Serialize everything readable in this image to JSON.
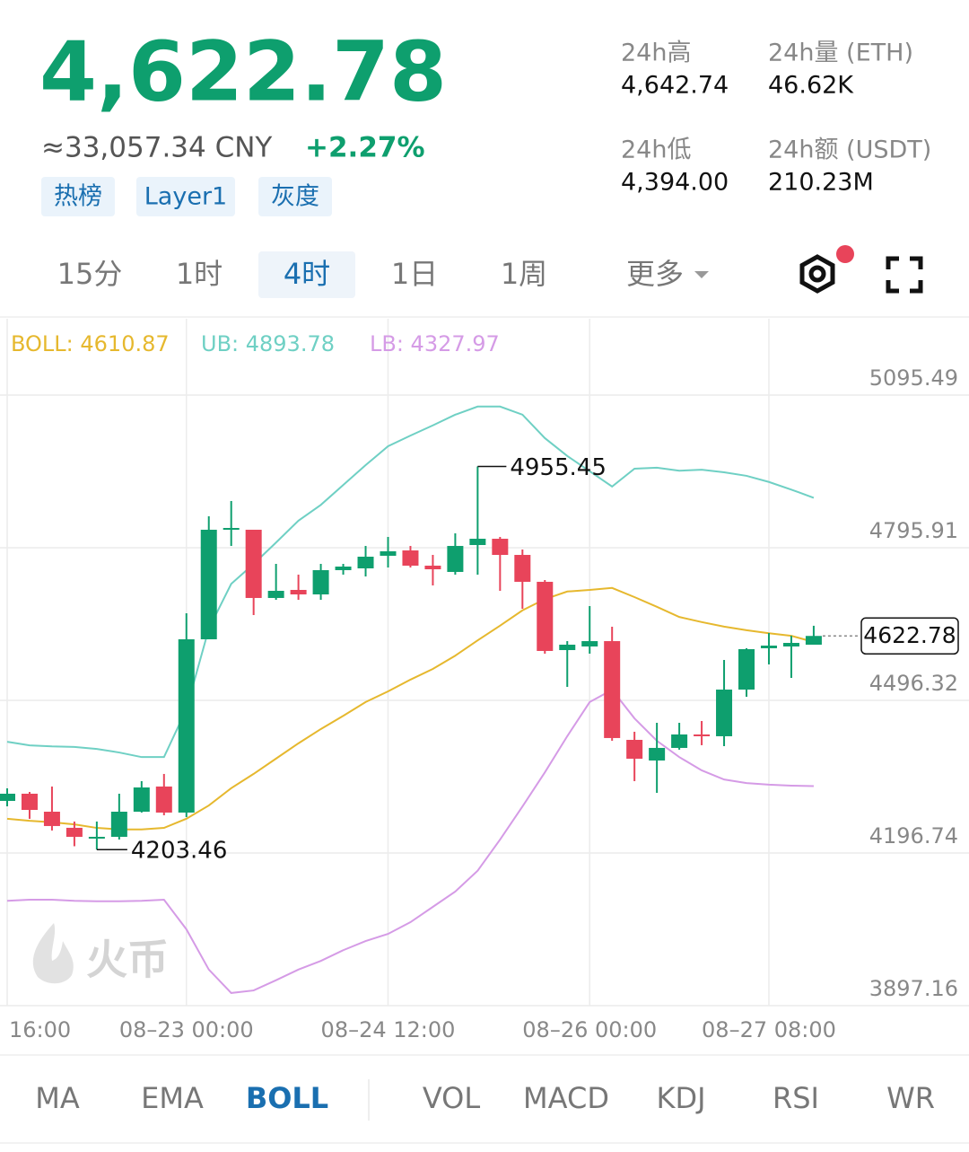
{
  "header": {
    "price": "4,622.78",
    "cny": "≈33,057.34 CNY",
    "change": "+2.27%",
    "tags": [
      "热榜",
      "Layer1",
      "灰度"
    ],
    "stats": [
      {
        "label": "24h高",
        "value": "4,642.74"
      },
      {
        "label": "24h量 (ETH)",
        "value": "46.62K"
      },
      {
        "label": "24h低",
        "value": "4,394.00"
      },
      {
        "label": "24h额 (USDT)",
        "value": "210.23M"
      }
    ]
  },
  "intervals": {
    "items": [
      "15分",
      "1时",
      "4时",
      "1日",
      "1周",
      "更多"
    ],
    "selected": 2
  },
  "indicators": {
    "items": [
      "MA",
      "EMA",
      "BOLL",
      "VOL",
      "MACD",
      "KDJ",
      "RSI",
      "WR"
    ],
    "selected": 2
  },
  "watermark": "火币",
  "chart_data": {
    "type": "candlestick",
    "categories": [
      "16:00",
      null,
      null,
      null,
      null,
      null,
      null,
      null,
      "08–23 00:00",
      null,
      null,
      null,
      null,
      null,
      null,
      null,
      null,
      "08–24 12:00",
      null,
      null,
      null,
      null,
      null,
      null,
      null,
      null,
      "08–26 00:00",
      null,
      null,
      null,
      null,
      null,
      null,
      null,
      "08–27 08:00",
      null,
      null
    ],
    "open": [
      4299.0,
      4313.1,
      4277.8,
      4246.2,
      4225.0,
      4228.5,
      4277.8,
      4327.2,
      4276.1,
      4616.2,
      4831.2,
      4831.2,
      4697.3,
      4713.1,
      4704.3,
      4751.9,
      4755.4,
      4780.1,
      4790.6,
      4760.7,
      4748.4,
      4801.2,
      4813.5,
      4781.8,
      4729.0,
      4595.0,
      4602.1,
      4612.6,
      4418.8,
      4378.3,
      4403.0,
      4429.4,
      4425.9,
      4517.5,
      4598.6,
      4602.1,
      4605.6
    ],
    "high": [
      4323.7,
      4316.6,
      4327.2,
      4258.5,
      4258.5,
      4313.1,
      4337.8,
      4351.9,
      4667.3,
      4857.6,
      4887.6,
      4831.2,
      4764.2,
      4743.1,
      4764.2,
      4764.2,
      4799.4,
      4817.1,
      4799.4,
      4781.8,
      4824.1,
      4955.45,
      4817.1,
      4792.4,
      4732.5,
      4612.6,
      4681.4,
      4640.8,
      4434.7,
      4452.3,
      4452.3,
      4455.8,
      4575.7,
      4598.6,
      4628.5,
      4623.2,
      4642.74
    ],
    "low": [
      4288.4,
      4263.8,
      4240.9,
      4210.0,
      4203.46,
      4223.2,
      4276.1,
      4270.8,
      4267.3,
      4616.2,
      4799.4,
      4663.7,
      4693.7,
      4693.7,
      4693.7,
      4743.1,
      4739.5,
      4757.1,
      4757.1,
      4721.9,
      4743.1,
      4743.1,
      4711.3,
      4676.1,
      4588.0,
      4522.8,
      4588.0,
      4417.1,
      4337.8,
      4314.9,
      4399.5,
      4408.3,
      4406.5,
      4503.4,
      4566.9,
      4540.4,
      4605.6
    ],
    "close": [
      4313.1,
      4281.3,
      4249.7,
      4228.5,
      4228.5,
      4277.8,
      4325.4,
      4276.1,
      4616.2,
      4831.2,
      4834.7,
      4697.3,
      4711.3,
      4704.3,
      4751.9,
      4758.9,
      4778.3,
      4788.9,
      4760.7,
      4753.6,
      4799.4,
      4813.5,
      4781.8,
      4729.0,
      4593.3,
      4605.6,
      4612.6,
      4422.4,
      4381.8,
      4403.0,
      4429.4,
      4425.9,
      4517.5,
      4596.8,
      4603.8,
      4609.1,
      4622.78
    ],
    "series": [
      {
        "name": "BOLL: 4610.87",
        "color": "#e6b82e",
        "values": [
          4264,
          4260,
          4257,
          4253,
          4246,
          4243,
          4243,
          4246,
          4264,
          4290,
          4324,
          4352,
          4382,
          4412,
          4440,
          4466,
          4493,
          4514,
          4537,
          4558,
          4584,
          4614,
          4643,
          4673,
          4695,
          4710,
          4713,
          4717,
          4699,
          4680,
          4660,
          4650,
          4641,
          4634,
          4628,
          4623,
          4610.87
        ]
      },
      {
        "name": "UB: 4893.78",
        "color": "#6fd0c4",
        "values": [
          4415,
          4408,
          4406,
          4405,
          4401,
          4394,
          4385,
          4385,
          4479,
          4637,
          4725,
          4764,
          4806,
          4849,
          4880,
          4919,
          4958,
          4995,
          5016,
          5036,
          5057,
          5073,
          5073,
          5057,
          5011,
          4976,
          4946,
          4916,
          4951,
          4953,
          4947,
          4949,
          4944,
          4937,
          4925,
          4910,
          4893.78
        ]
      },
      {
        "name": "LB: 4327.97",
        "color": "#d59be6",
        "values": [
          4103,
          4105,
          4105,
          4103,
          4102,
          4102,
          4103,
          4105,
          4047,
          3968,
          3922,
          3927,
          3947,
          3968,
          3985,
          4006,
          4024,
          4038,
          4061,
          4091,
          4121,
          4162,
          4223,
          4288,
          4355,
          4426,
          4493,
          4517,
          4461,
          4417,
          4385,
          4359,
          4341,
          4334,
          4331,
          4329,
          4327.97
        ]
      }
    ],
    "ylim": [
      3897.16,
      5245.3
    ],
    "yticks": [
      5095.49,
      4795.91,
      4496.32,
      4196.74,
      3897.16
    ],
    "grid": true,
    "up_color": "#0e9f6e",
    "down_color": "#e8445a"
  }
}
